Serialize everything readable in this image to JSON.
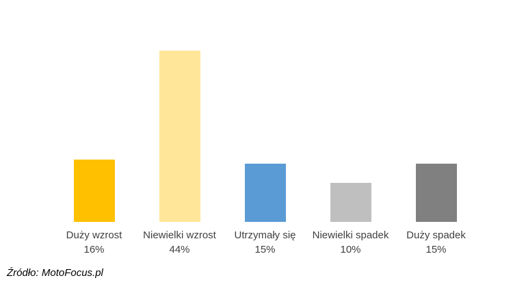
{
  "chart_data": {
    "type": "bar",
    "title": "",
    "xlabel": "",
    "ylabel": "",
    "categories": [
      "Duży wzrost",
      "Niewielki wzrost",
      "Utrzymały się",
      "Niewielki spadek",
      "Duży spadek"
    ],
    "values": [
      16,
      44,
      15,
      10,
      15
    ],
    "value_labels": [
      "16%",
      "44%",
      "15%",
      "10%",
      "15%"
    ],
    "bar_colors": [
      "#FFC000",
      "#FFE699",
      "#5B9BD5",
      "#BFBFBF",
      "#808080"
    ],
    "ylim": [
      0,
      57
    ],
    "grid": false,
    "legend": false,
    "axes_visible": false,
    "label_text_color": "#404040"
  },
  "source": {
    "caption": "Źródło: MotoFocus.pl"
  }
}
